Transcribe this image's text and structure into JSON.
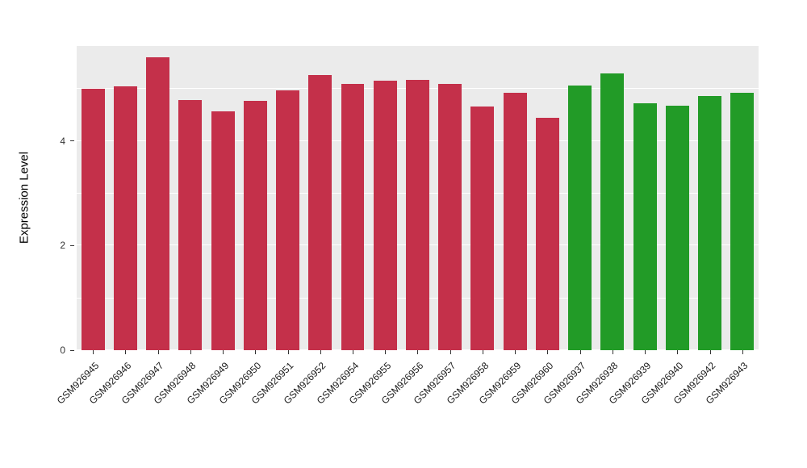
{
  "chart_data": {
    "type": "bar",
    "title": "",
    "xlabel": "",
    "ylabel": "Expression Level",
    "categories": [
      "GSM926945",
      "GSM926946",
      "GSM926947",
      "GSM926948",
      "GSM926949",
      "GSM926950",
      "GSM926951",
      "GSM926952",
      "GSM926954",
      "GSM926955",
      "GSM926956",
      "GSM926957",
      "GSM926958",
      "GSM926959",
      "GSM926960",
      "GSM926937",
      "GSM926938",
      "GSM926939",
      "GSM926940",
      "GSM926942",
      "GSM926943"
    ],
    "values": [
      5.0,
      5.05,
      5.6,
      4.78,
      4.57,
      4.77,
      4.97,
      5.27,
      5.1,
      5.15,
      5.17,
      5.1,
      4.67,
      4.93,
      4.45,
      5.07,
      5.3,
      4.72,
      4.68,
      4.87,
      4.93
    ],
    "groups": [
      "red",
      "red",
      "red",
      "red",
      "red",
      "red",
      "red",
      "red",
      "red",
      "red",
      "red",
      "red",
      "red",
      "red",
      "red",
      "green",
      "green",
      "green",
      "green",
      "green",
      "green"
    ],
    "group_colors": {
      "red": "#C4304A",
      "green": "#229B27"
    },
    "yticks": [
      0,
      2,
      4
    ],
    "grid_minor": [
      1,
      3,
      5
    ],
    "ylim": [
      0,
      5.82
    ],
    "legend": "none",
    "panel_background": "#EBEBEB",
    "grid_color": "#FFFFFF"
  }
}
